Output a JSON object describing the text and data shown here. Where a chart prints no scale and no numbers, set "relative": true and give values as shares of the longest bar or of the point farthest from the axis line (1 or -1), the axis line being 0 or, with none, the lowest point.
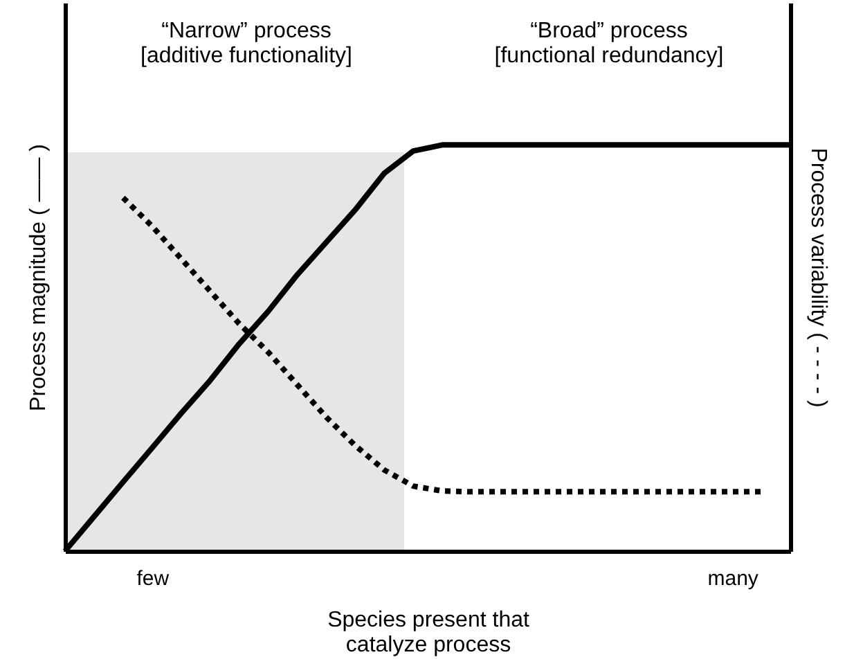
{
  "chart_data": {
    "type": "line",
    "relative": true,
    "xlabel": "Species present that\ncatalyze process",
    "ylabel": "Process magnitude ( —— )",
    "y2label": "Process variability ( - - - - )",
    "categories": [
      null,
      null,
      null,
      "few",
      null,
      null,
      null,
      null,
      null,
      null,
      null,
      null,
      null,
      null,
      null,
      null,
      null,
      null,
      null,
      null,
      null,
      null,
      null,
      "many",
      null,
      null
    ],
    "series": [
      {
        "color": "#000000",
        "line_style": "solid",
        "values": [
          0,
          0.085,
          0.17,
          0.254,
          0.339,
          0.42,
          0.51,
          0.59,
          0.68,
          0.76,
          0.84,
          0.93,
          0.985,
          1.0,
          1.0,
          1.0,
          1.0,
          1.0,
          1.0,
          1.0,
          1.0,
          1.0,
          1.0,
          1.0,
          1.0,
          1.0
        ]
      },
      {
        "color": "#000000",
        "line_style": "dotted",
        "values": [
          null,
          null,
          0.87,
          0.8,
          0.72,
          0.64,
          0.56,
          0.49,
          0.41,
          0.33,
          0.26,
          0.2,
          0.16,
          0.148,
          0.146,
          0.146,
          0.146,
          0.146,
          0.146,
          0.146,
          0.146,
          0.146,
          0.146,
          0.146,
          0.146,
          null
        ]
      }
    ],
    "annotations": [
      "“Narrow” process\n[additive functionality]",
      "“Broad” process\n[functional redundancy]"
    ],
    "grid": false,
    "marker": "none"
  }
}
